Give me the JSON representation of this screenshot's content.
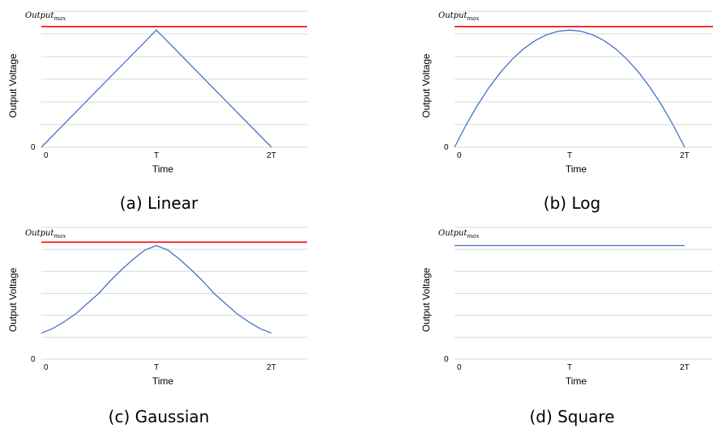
{
  "chart_data": [
    {
      "type": "line",
      "caption": "(a)  Linear",
      "xlabel": "Time",
      "ylabel": "Output Voltage",
      "x_ticks": [
        "0",
        "T",
        "2T"
      ],
      "y_ticks": [
        "0"
      ],
      "max_label": {
        "base": "Output",
        "sub": "max"
      },
      "ylim": [
        0,
        1.16
      ],
      "series": [
        {
          "kind": "output",
          "color": "#4472c4",
          "x": [
            0,
            1,
            2
          ],
          "y": [
            0,
            1,
            0
          ]
        },
        {
          "kind": "max",
          "color": "#ff0000",
          "x": [
            0,
            2.3
          ],
          "y": [
            1.03,
            1.03
          ]
        }
      ]
    },
    {
      "type": "line",
      "caption": "(b)  Log",
      "xlabel": "Time",
      "ylabel": "Output Voltage",
      "x_ticks": [
        "0",
        "T",
        "2T"
      ],
      "y_ticks": [
        "0"
      ],
      "max_label": {
        "base": "Output",
        "sub": "max"
      },
      "ylim": [
        0,
        1.16
      ],
      "series": [
        {
          "kind": "output",
          "color": "#4472c4",
          "x": [
            0,
            0.1,
            0.2,
            0.3,
            0.4,
            0.5,
            0.6,
            0.7,
            0.8,
            0.9,
            1.0,
            1.1,
            1.2,
            1.3,
            1.4,
            1.5,
            1.6,
            1.7,
            1.8,
            1.9,
            2.0
          ],
          "y": [
            0,
            0.19,
            0.36,
            0.51,
            0.64,
            0.75,
            0.84,
            0.91,
            0.96,
            0.99,
            1,
            0.99,
            0.96,
            0.91,
            0.84,
            0.75,
            0.64,
            0.51,
            0.36,
            0.19,
            0
          ]
        },
        {
          "kind": "max",
          "color": "#ff0000",
          "x": [
            0,
            2.3
          ],
          "y": [
            1.03,
            1.03
          ]
        }
      ]
    },
    {
      "type": "line",
      "caption": "(c)  Gaussian",
      "xlabel": "Time",
      "ylabel": "Output Voltage",
      "x_ticks": [
        "0",
        "T",
        "2T"
      ],
      "y_ticks": [
        "0"
      ],
      "max_label": {
        "base": "Output",
        "sub": "max"
      },
      "ylim": [
        0,
        1.16
      ],
      "series": [
        {
          "kind": "output",
          "color": "#4472c4",
          "x": [
            0,
            0.1,
            0.2,
            0.3,
            0.4,
            0.5,
            0.6,
            0.7,
            0.8,
            0.9,
            1.0,
            1.1,
            1.2,
            1.3,
            1.4,
            1.5,
            1.6,
            1.7,
            1.8,
            1.9,
            2.0
          ],
          "y": [
            0.23,
            0.27,
            0.33,
            0.4,
            0.49,
            0.58,
            0.69,
            0.79,
            0.88,
            0.96,
            1,
            0.96,
            0.88,
            0.79,
            0.69,
            0.58,
            0.49,
            0.4,
            0.33,
            0.27,
            0.23
          ]
        },
        {
          "kind": "max",
          "color": "#ff0000",
          "x": [
            0,
            2.3
          ],
          "y": [
            1.03,
            1.03
          ]
        }
      ]
    },
    {
      "type": "line",
      "caption": "(d)  Square",
      "xlabel": "Time",
      "ylabel": "Output Voltage",
      "x_ticks": [
        "0",
        "T",
        "2T"
      ],
      "y_ticks": [
        "0"
      ],
      "max_label": {
        "base": "Output",
        "sub": "max"
      },
      "ylim": [
        0,
        1.16
      ],
      "series": [
        {
          "kind": "output",
          "color": "#4472c4",
          "x": [
            0,
            2
          ],
          "y": [
            1,
            1
          ]
        }
      ]
    }
  ],
  "gridline_color": "#d9d9d9"
}
